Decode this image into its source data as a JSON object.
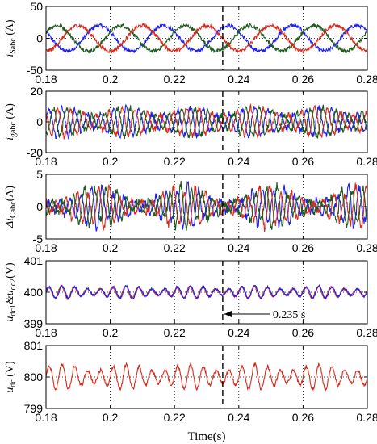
{
  "colors": {
    "blue": "#1f1ff0",
    "red": "#d82a1a",
    "green": "#1e5a1e",
    "black": "#000000"
  },
  "x_axis": {
    "label": "Time(s)",
    "ticks": [
      "0.18",
      "0.2",
      "0.22",
      "0.24",
      "0.26",
      "0.28"
    ],
    "tick_values": [
      0.18,
      0.2,
      0.22,
      0.24,
      0.26,
      0.28
    ],
    "xlim": [
      0.18,
      0.28
    ]
  },
  "annotation": {
    "text": "0.235 s",
    "x": 0.235
  },
  "chart_data": [
    {
      "type": "line",
      "ylabel": "i_Sabc (A)",
      "ylabel_main": "i",
      "ylabel_sub": "Sabc",
      "ylabel_tail": " (A)",
      "ylim": [
        -50,
        50
      ],
      "yticks": [
        -50,
        0,
        50
      ],
      "ytick_labels": [
        "-50",
        "0",
        "50"
      ],
      "grid": true,
      "series": [
        {
          "color": "blue",
          "kind": "sine",
          "amplitude": 20,
          "freq_hz": 50,
          "phase_deg": 150,
          "noise": 3
        },
        {
          "color": "green",
          "kind": "sine",
          "amplitude": 20,
          "freq_hz": 50,
          "phase_deg": 30,
          "noise": 3
        },
        {
          "color": "red",
          "kind": "sine",
          "amplitude": 20,
          "freq_hz": 50,
          "phase_deg": -90,
          "noise": 3
        }
      ]
    },
    {
      "type": "line",
      "ylabel": "i_gabc (A)",
      "ylabel_main": "i",
      "ylabel_sub": "gabc",
      "ylabel_tail": " (A)",
      "ylim": [
        -20,
        20
      ],
      "yticks": [
        -20,
        0,
        20
      ],
      "ytick_labels": [
        "-20",
        "0",
        "20"
      ],
      "grid": true,
      "series": [
        {
          "color": "blue",
          "kind": "ripple",
          "amplitude": 7,
          "freq_hz": 250,
          "phase_deg": 0,
          "noise": 2
        },
        {
          "color": "red",
          "kind": "ripple",
          "amplitude": 7,
          "freq_hz": 250,
          "phase_deg": 120,
          "noise": 2
        },
        {
          "color": "green",
          "kind": "ripple",
          "amplitude": 7,
          "freq_hz": 250,
          "phase_deg": 240,
          "noise": 2
        }
      ]
    },
    {
      "type": "line",
      "ylabel": "Δi_Cabc (A)",
      "ylabel_main": "Δi",
      "ylabel_sub": "Cabc",
      "ylabel_tail": "(A)",
      "ylim": [
        -5,
        5
      ],
      "yticks": [
        -5,
        0,
        5
      ],
      "ytick_labels": [
        "-5",
        "0",
        "5"
      ],
      "grid": true,
      "series": [
        {
          "color": "blue",
          "kind": "burst",
          "amplitude": 2,
          "freq_hz": 300,
          "phase_deg": 0,
          "noise": 0.6
        },
        {
          "color": "red",
          "kind": "burst",
          "amplitude": 2,
          "freq_hz": 300,
          "phase_deg": 120,
          "noise": 0.6
        },
        {
          "color": "green",
          "kind": "burst",
          "amplitude": 2,
          "freq_hz": 300,
          "phase_deg": 240,
          "noise": 0.6
        }
      ]
    },
    {
      "type": "line",
      "ylabel": "u_dc1&u_dc2 (V)",
      "ylabel_main": "u",
      "ylabel_sub": "dc1",
      "ylabel_mid": "&u",
      "ylabel_sub2": "dc2",
      "ylabel_tail": "(V)",
      "ylim": [
        399,
        401
      ],
      "yticks": [
        399,
        400,
        401
      ],
      "ytick_labels": [
        "399",
        "400",
        "401"
      ],
      "grid": true,
      "series": [
        {
          "color": "red",
          "kind": "ripple",
          "amplitude": 0.15,
          "freq_hz": 250,
          "phase_deg": 20,
          "noise": 0.03,
          "offset": 400
        },
        {
          "color": "blue",
          "kind": "ripple",
          "amplitude": 0.15,
          "freq_hz": 250,
          "phase_deg": 0,
          "noise": 0.03,
          "offset": 400
        }
      ]
    },
    {
      "type": "line",
      "ylabel": "u_dc (V)",
      "ylabel_main": "u",
      "ylabel_sub": "dc",
      "ylabel_tail": " (V)",
      "ylim": [
        799,
        801
      ],
      "yticks": [
        799,
        800,
        801
      ],
      "ytick_labels": [
        "799",
        "800",
        "801"
      ],
      "grid": true,
      "series": [
        {
          "color": "red",
          "kind": "ripple",
          "amplitude": 0.3,
          "freq_hz": 250,
          "phase_deg": 0,
          "noise": 0.05,
          "offset": 800
        }
      ]
    }
  ]
}
